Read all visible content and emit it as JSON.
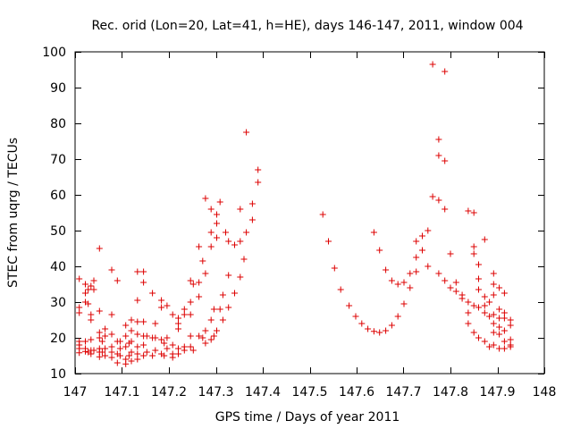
{
  "chart_data": {
    "type": "scatter",
    "title": "Rec. orid (Lon=20, Lat=41, h=HE), days 146-147, 2011, window 004",
    "xlabel": "GPS time / Days of year 2011",
    "ylabel": "STEC from uqrg / TECUs",
    "xlim": [
      147,
      148
    ],
    "ylim": [
      10,
      100
    ],
    "xticks": [
      147,
      147.1,
      147.2,
      147.3,
      147.4,
      147.5,
      147.6,
      147.7,
      147.8,
      147.9,
      148
    ],
    "xtick_labels": [
      "147",
      "147.1",
      "147.2",
      "147.3",
      "147.4",
      "147.5",
      "147.6",
      "147.7",
      "147.8",
      "147.9",
      "148"
    ],
    "yticks": [
      10,
      20,
      30,
      40,
      50,
      60,
      70,
      80,
      90,
      100
    ],
    "ytick_labels": [
      "10",
      "20",
      "30",
      "40",
      "50",
      "60",
      "70",
      "80",
      "90",
      "100"
    ],
    "marker": "plus",
    "color": "#dd0000",
    "grid": false,
    "points": [
      [
        147.009,
        27.0
      ],
      [
        147.009,
        28.5
      ],
      [
        147.009,
        36.5
      ],
      [
        147.009,
        19.0
      ],
      [
        147.009,
        18.0
      ],
      [
        147.009,
        17.0
      ],
      [
        147.009,
        15.8
      ],
      [
        147.022,
        32.5
      ],
      [
        147.022,
        30.0
      ],
      [
        147.022,
        35.0
      ],
      [
        147.022,
        19.0
      ],
      [
        147.022,
        17.0
      ],
      [
        147.022,
        16.2
      ],
      [
        147.028,
        33.5
      ],
      [
        147.028,
        29.5
      ],
      [
        147.028,
        16.0
      ],
      [
        147.034,
        25.0
      ],
      [
        147.034,
        26.5
      ],
      [
        147.034,
        34.5
      ],
      [
        147.034,
        19.5
      ],
      [
        147.034,
        16.5
      ],
      [
        147.034,
        15.5
      ],
      [
        147.04,
        36.0
      ],
      [
        147.04,
        33.5
      ],
      [
        147.04,
        16.5
      ],
      [
        147.052,
        45.0
      ],
      [
        147.052,
        27.5
      ],
      [
        147.052,
        21.5
      ],
      [
        147.052,
        20.0
      ],
      [
        147.052,
        17.0
      ],
      [
        147.052,
        16.0
      ],
      [
        147.052,
        14.7
      ],
      [
        147.058,
        19.0
      ],
      [
        147.058,
        16.0
      ],
      [
        147.064,
        22.5
      ],
      [
        147.064,
        20.5
      ],
      [
        147.064,
        17.0
      ],
      [
        147.064,
        15.0
      ],
      [
        147.078,
        39.0
      ],
      [
        147.078,
        26.5
      ],
      [
        147.078,
        21.0
      ],
      [
        147.078,
        17.5
      ],
      [
        147.078,
        16.0
      ],
      [
        147.078,
        14.5
      ],
      [
        147.09,
        36.0
      ],
      [
        147.09,
        19.0
      ],
      [
        147.09,
        15.5
      ],
      [
        147.09,
        13.0
      ],
      [
        147.096,
        19.0
      ],
      [
        147.096,
        17.0
      ],
      [
        147.096,
        15.0
      ],
      [
        147.108,
        23.5
      ],
      [
        147.108,
        20.5
      ],
      [
        147.108,
        17.5
      ],
      [
        147.108,
        14.0
      ],
      [
        147.108,
        12.7
      ],
      [
        147.115,
        18.5
      ],
      [
        147.115,
        15.0
      ],
      [
        147.12,
        25.0
      ],
      [
        147.12,
        22.0
      ],
      [
        147.12,
        19.0
      ],
      [
        147.12,
        16.0
      ],
      [
        147.12,
        13.5
      ],
      [
        147.133,
        38.5
      ],
      [
        147.133,
        30.5
      ],
      [
        147.133,
        24.5
      ],
      [
        147.133,
        21.0
      ],
      [
        147.133,
        17.5
      ],
      [
        147.133,
        15.5
      ],
      [
        147.133,
        14.0
      ],
      [
        147.146,
        38.5
      ],
      [
        147.146,
        35.5
      ],
      [
        147.146,
        24.5
      ],
      [
        147.146,
        20.5
      ],
      [
        147.146,
        18.0
      ],
      [
        147.146,
        15.0
      ],
      [
        147.153,
        20.5
      ],
      [
        147.153,
        16.0
      ],
      [
        147.165,
        32.5
      ],
      [
        147.165,
        20.0
      ],
      [
        147.165,
        15.0
      ],
      [
        147.171,
        24.0
      ],
      [
        147.171,
        20.0
      ],
      [
        147.171,
        16.5
      ],
      [
        147.184,
        30.5
      ],
      [
        147.184,
        28.5
      ],
      [
        147.184,
        19.5
      ],
      [
        147.184,
        15.5
      ],
      [
        147.19,
        18.5
      ],
      [
        147.19,
        15.0
      ],
      [
        147.196,
        29.0
      ],
      [
        147.196,
        20.0
      ],
      [
        147.196,
        17.0
      ],
      [
        147.208,
        26.5
      ],
      [
        147.208,
        18.0
      ],
      [
        147.208,
        15.5
      ],
      [
        147.208,
        14.5
      ],
      [
        147.22,
        25.5
      ],
      [
        147.22,
        24.0
      ],
      [
        147.22,
        22.5
      ],
      [
        147.22,
        17.0
      ],
      [
        147.22,
        15.5
      ],
      [
        147.233,
        28.0
      ],
      [
        147.233,
        26.5
      ],
      [
        147.233,
        17.5
      ],
      [
        147.233,
        16.5
      ],
      [
        147.246,
        36.0
      ],
      [
        147.246,
        30.0
      ],
      [
        147.246,
        26.5
      ],
      [
        147.246,
        20.5
      ],
      [
        147.246,
        17.5
      ],
      [
        147.252,
        35.0
      ],
      [
        147.252,
        16.5
      ],
      [
        147.264,
        45.5
      ],
      [
        147.264,
        35.5
      ],
      [
        147.264,
        31.5
      ],
      [
        147.264,
        20.5
      ],
      [
        147.272,
        41.5
      ],
      [
        147.272,
        20.0
      ],
      [
        147.278,
        59.0
      ],
      [
        147.278,
        38.0
      ],
      [
        147.278,
        22.0
      ],
      [
        147.278,
        18.5
      ],
      [
        147.29,
        56.0
      ],
      [
        147.29,
        49.5
      ],
      [
        147.29,
        45.5
      ],
      [
        147.29,
        25.0
      ],
      [
        147.29,
        19.5
      ],
      [
        147.296,
        28.0
      ],
      [
        147.296,
        20.5
      ],
      [
        147.302,
        54.5
      ],
      [
        147.302,
        52.0
      ],
      [
        147.302,
        48.0
      ],
      [
        147.302,
        22.0
      ],
      [
        147.309,
        58.0
      ],
      [
        147.309,
        28.0
      ],
      [
        147.315,
        32.0
      ],
      [
        147.315,
        25.0
      ],
      [
        147.321,
        49.5
      ],
      [
        147.327,
        47.0
      ],
      [
        147.327,
        37.5
      ],
      [
        147.327,
        28.5
      ],
      [
        147.34,
        46.0
      ],
      [
        147.34,
        32.5
      ],
      [
        147.352,
        56.0
      ],
      [
        147.352,
        47.0
      ],
      [
        147.352,
        37.0
      ],
      [
        147.36,
        42.0
      ],
      [
        147.365,
        77.5
      ],
      [
        147.365,
        49.5
      ],
      [
        147.378,
        57.5
      ],
      [
        147.378,
        53.0
      ],
      [
        147.39,
        67.0
      ],
      [
        147.39,
        63.5
      ],
      [
        147.528,
        54.5
      ],
      [
        147.54,
        47.0
      ],
      [
        147.553,
        39.5
      ],
      [
        147.566,
        33.5
      ],
      [
        147.584,
        29.0
      ],
      [
        147.598,
        26.0
      ],
      [
        147.611,
        24.0
      ],
      [
        147.624,
        22.5
      ],
      [
        147.637,
        21.8
      ],
      [
        147.637,
        49.5
      ],
      [
        147.649,
        21.5
      ],
      [
        147.649,
        44.5
      ],
      [
        147.662,
        22.0
      ],
      [
        147.662,
        39.0
      ],
      [
        147.675,
        23.5
      ],
      [
        147.675,
        36.0
      ],
      [
        147.688,
        26.0
      ],
      [
        147.688,
        35.0
      ],
      [
        147.701,
        29.5
      ],
      [
        147.701,
        35.5
      ],
      [
        147.714,
        34.0
      ],
      [
        147.714,
        38.0
      ],
      [
        147.727,
        38.5
      ],
      [
        147.727,
        42.5
      ],
      [
        147.727,
        47.0
      ],
      [
        147.74,
        44.5
      ],
      [
        147.74,
        48.5
      ],
      [
        147.752,
        50.0
      ],
      [
        147.752,
        40.0
      ],
      [
        147.762,
        96.5
      ],
      [
        147.762,
        59.5
      ],
      [
        147.775,
        75.5
      ],
      [
        147.775,
        71.0
      ],
      [
        147.775,
        58.5
      ],
      [
        147.775,
        38.0
      ],
      [
        147.788,
        94.5
      ],
      [
        147.788,
        69.5
      ],
      [
        147.788,
        56.0
      ],
      [
        147.788,
        36.0
      ],
      [
        147.8,
        43.5
      ],
      [
        147.8,
        34.0
      ],
      [
        147.812,
        35.5
      ],
      [
        147.812,
        33.0
      ],
      [
        147.825,
        32.0
      ],
      [
        147.825,
        31.0
      ],
      [
        147.838,
        55.5
      ],
      [
        147.838,
        30.0
      ],
      [
        147.838,
        27.0
      ],
      [
        147.838,
        24.0
      ],
      [
        147.85,
        55.0
      ],
      [
        147.85,
        45.5
      ],
      [
        147.85,
        43.5
      ],
      [
        147.85,
        29.0
      ],
      [
        147.85,
        21.5
      ],
      [
        147.86,
        40.5
      ],
      [
        147.86,
        36.5
      ],
      [
        147.86,
        33.5
      ],
      [
        147.86,
        28.5
      ],
      [
        147.86,
        20.0
      ],
      [
        147.873,
        47.5
      ],
      [
        147.873,
        31.5
      ],
      [
        147.873,
        29.0
      ],
      [
        147.873,
        27.0
      ],
      [
        147.873,
        19.0
      ],
      [
        147.883,
        30.0
      ],
      [
        147.883,
        26.0
      ],
      [
        147.883,
        17.5
      ],
      [
        147.892,
        38.0
      ],
      [
        147.892,
        35.0
      ],
      [
        147.892,
        32.0
      ],
      [
        147.892,
        26.5
      ],
      [
        147.892,
        24.0
      ],
      [
        147.892,
        21.5
      ],
      [
        147.892,
        18.0
      ],
      [
        147.904,
        34.0
      ],
      [
        147.904,
        28.0
      ],
      [
        147.904,
        25.5
      ],
      [
        147.904,
        23.0
      ],
      [
        147.904,
        21.0
      ],
      [
        147.904,
        17.0
      ],
      [
        147.915,
        32.5
      ],
      [
        147.915,
        27.0
      ],
      [
        147.915,
        25.5
      ],
      [
        147.915,
        22.0
      ],
      [
        147.915,
        19.0
      ],
      [
        147.915,
        17.0
      ],
      [
        147.928,
        25.0
      ],
      [
        147.928,
        23.5
      ],
      [
        147.928,
        19.5
      ],
      [
        147.928,
        18.0
      ],
      [
        147.928,
        17.5
      ]
    ]
  }
}
